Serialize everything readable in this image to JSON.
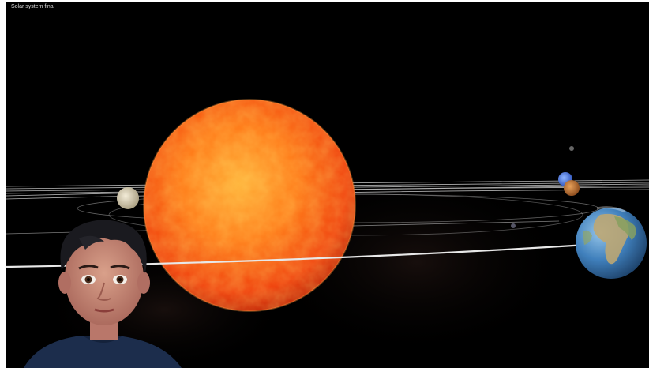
{
  "window": {
    "title": "Solar system final"
  },
  "scene": {
    "objects": [
      {
        "name": "Sun",
        "icon": "sun"
      },
      {
        "name": "Venus",
        "icon": "planet"
      },
      {
        "name": "Earth",
        "icon": "planet"
      },
      {
        "name": "Mars",
        "icon": "planet"
      },
      {
        "name": "Neptune",
        "icon": "planet"
      }
    ],
    "character": "animated-boy-avatar"
  },
  "colors": {
    "background": "#000000",
    "sun": "#ff6a10",
    "orbit": "#d9d9d9",
    "earth_ocean": "#2f6fb2"
  }
}
